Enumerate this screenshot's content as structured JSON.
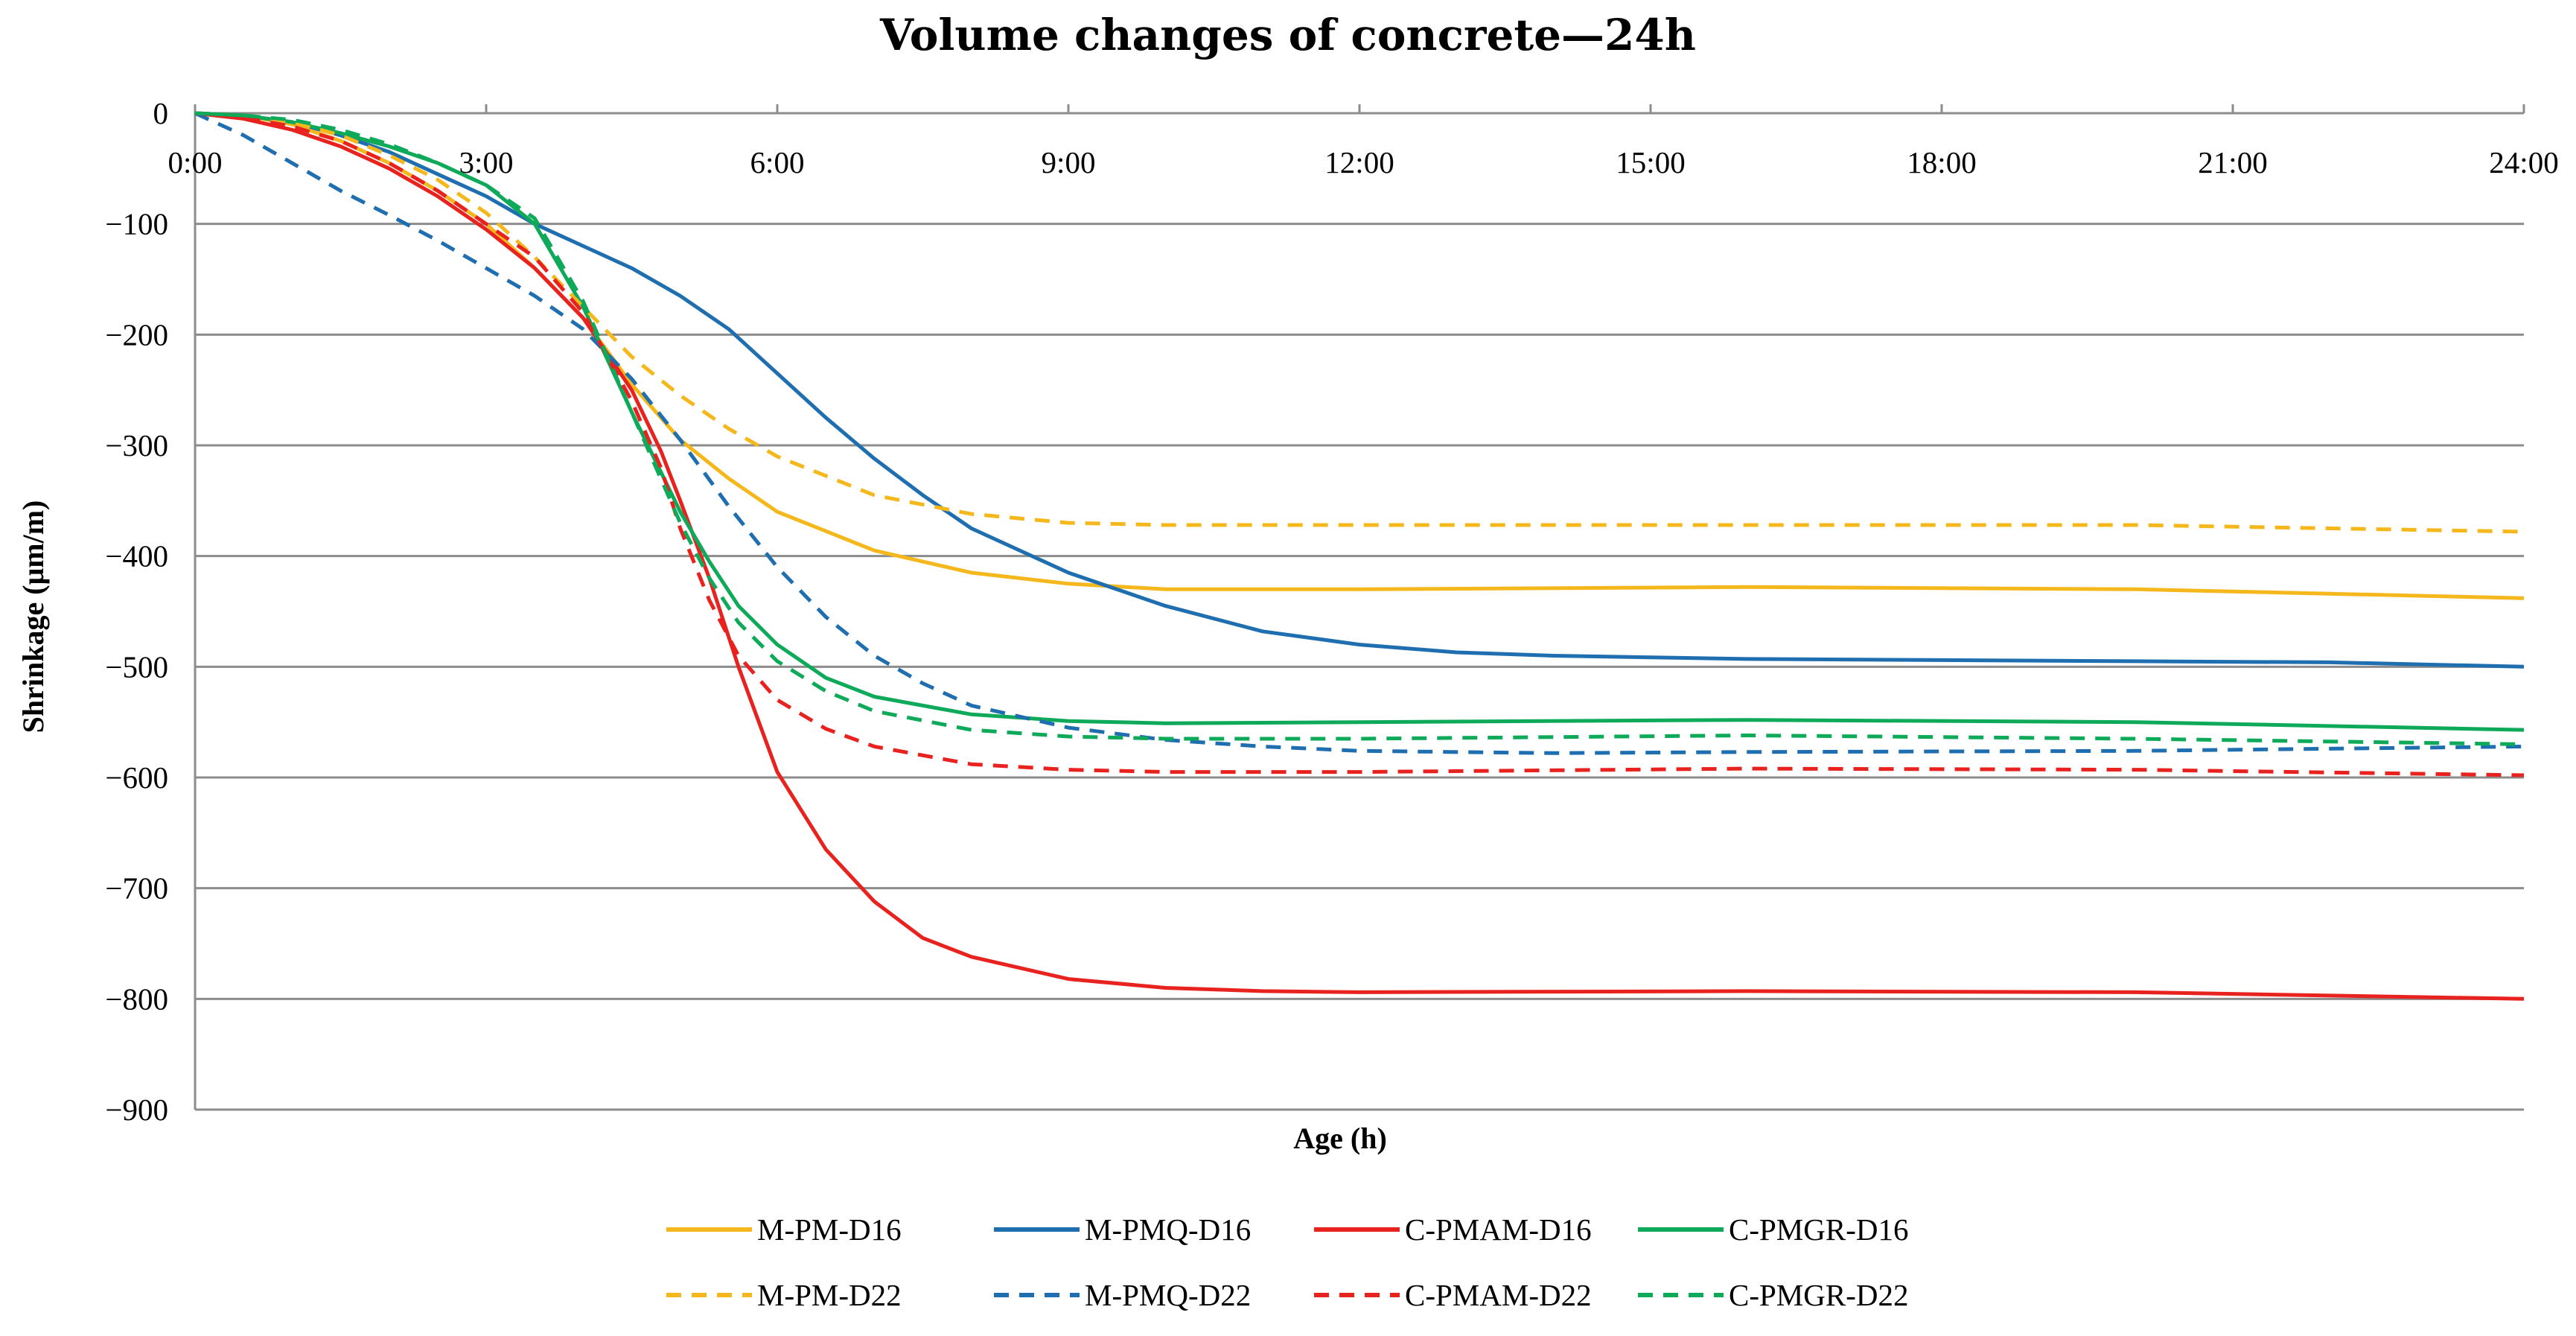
{
  "chart_data": {
    "type": "line",
    "title": "Volume changes of concrete—24h",
    "xlabel": "Age (h)",
    "ylabel": "Shrinkage (μm/m)",
    "xlim": [
      0,
      24
    ],
    "ylim": [
      -900,
      0
    ],
    "x_ticks": [
      0,
      3,
      6,
      9,
      12,
      15,
      18,
      21,
      24
    ],
    "x_tick_labels": [
      "0:00",
      "3:00",
      "6:00",
      "9:00",
      "12:00",
      "15:00",
      "18:00",
      "21:00",
      "24:00"
    ],
    "y_ticks": [
      0,
      -100,
      -200,
      -300,
      -400,
      -500,
      -600,
      -700,
      -800,
      -900
    ],
    "y_tick_labels": [
      "0",
      "−100",
      "−200",
      "−300",
      "−400",
      "−500",
      "−600",
      "−700",
      "−800",
      "−900"
    ],
    "grid": "horizontal",
    "legend_position": "bottom",
    "series": [
      {
        "name": "M-PM-D16",
        "color": "#F5B81C",
        "dash": "solid",
        "x": [
          0,
          0.5,
          1,
          1.5,
          2,
          2.5,
          3,
          3.5,
          4,
          4.5,
          5,
          5.5,
          6,
          7,
          8,
          9,
          10,
          12,
          16,
          20,
          24
        ],
        "y": [
          0,
          -2,
          -10,
          -25,
          -45,
          -70,
          -100,
          -140,
          -185,
          -245,
          -295,
          -330,
          -360,
          -395,
          -415,
          -425,
          -430,
          -430,
          -428,
          -430,
          -438
        ]
      },
      {
        "name": "M-PMQ-D16",
        "color": "#1F6FB0",
        "dash": "solid",
        "x": [
          0,
          0.5,
          1,
          1.5,
          2,
          2.5,
          3,
          3.5,
          4,
          4.5,
          5,
          5.5,
          6,
          6.5,
          7,
          7.5,
          8,
          9,
          10,
          11,
          12,
          13,
          14,
          16,
          18,
          20,
          22,
          24
        ],
        "y": [
          0,
          -2,
          -8,
          -20,
          -35,
          -55,
          -75,
          -100,
          -120,
          -140,
          -165,
          -195,
          -235,
          -275,
          -312,
          -345,
          -375,
          -415,
          -445,
          -468,
          -480,
          -487,
          -490,
          -493,
          -494,
          -495,
          -496,
          -500
        ]
      },
      {
        "name": "C-PMAM-D16",
        "color": "#E8231F",
        "dash": "solid",
        "x": [
          0,
          0.5,
          1,
          1.5,
          2,
          2.5,
          3,
          3.5,
          4,
          4.5,
          4.8,
          5,
          5.3,
          5.6,
          6,
          6.5,
          7,
          7.5,
          8,
          9,
          10,
          11,
          12,
          16,
          20,
          24
        ],
        "y": [
          0,
          -5,
          -15,
          -30,
          -50,
          -75,
          -105,
          -140,
          -185,
          -250,
          -305,
          -350,
          -420,
          -500,
          -595,
          -665,
          -712,
          -745,
          -762,
          -782,
          -790,
          -793,
          -794,
          -793,
          -794,
          -800
        ]
      },
      {
        "name": "C-PMGR-D16",
        "color": "#0EAA5A",
        "dash": "solid",
        "x": [
          0,
          0.5,
          1,
          1.5,
          2,
          2.5,
          3,
          3.5,
          4,
          4.5,
          5,
          5.3,
          5.6,
          6,
          6.5,
          7,
          8,
          9,
          10,
          12,
          16,
          20,
          24
        ],
        "y": [
          0,
          -2,
          -8,
          -18,
          -30,
          -45,
          -65,
          -100,
          -175,
          -270,
          -360,
          -405,
          -445,
          -480,
          -510,
          -527,
          -543,
          -549,
          -551,
          -550,
          -548,
          -550,
          -557
        ]
      },
      {
        "name": "M-PM-D22",
        "color": "#F5B81C",
        "dash": "dashed",
        "x": [
          0,
          0.5,
          1,
          1.5,
          2,
          2.5,
          3,
          3.5,
          4,
          4.5,
          5,
          5.5,
          6,
          7,
          8,
          9,
          10,
          12,
          16,
          20,
          24
        ],
        "y": [
          0,
          -2,
          -8,
          -20,
          -38,
          -60,
          -90,
          -130,
          -175,
          -220,
          -255,
          -285,
          -310,
          -345,
          -362,
          -370,
          -372,
          -372,
          -372,
          -372,
          -378
        ]
      },
      {
        "name": "M-PMQ-D22",
        "color": "#1F6FB0",
        "dash": "dashed",
        "x": [
          0,
          0.5,
          1,
          1.5,
          2,
          2.5,
          3,
          3.5,
          4,
          4.5,
          5,
          5.5,
          6,
          6.5,
          7,
          7.5,
          8,
          9,
          10,
          11,
          12,
          14,
          16,
          20,
          24
        ],
        "y": [
          0,
          -20,
          -45,
          -70,
          -92,
          -115,
          -140,
          -165,
          -195,
          -240,
          -295,
          -355,
          -410,
          -455,
          -490,
          -515,
          -535,
          -555,
          -566,
          -572,
          -576,
          -578,
          -577,
          -576,
          -572
        ]
      },
      {
        "name": "C-PMAM-D22",
        "color": "#E8231F",
        "dash": "dashed",
        "x": [
          0,
          0.5,
          1,
          1.5,
          2,
          2.5,
          3,
          3.5,
          4,
          4.5,
          4.8,
          5,
          5.3,
          5.6,
          6,
          6.5,
          7,
          8,
          9,
          10,
          12,
          16,
          20,
          24
        ],
        "y": [
          0,
          -4,
          -12,
          -25,
          -45,
          -70,
          -100,
          -130,
          -180,
          -260,
          -320,
          -375,
          -440,
          -490,
          -530,
          -556,
          -572,
          -588,
          -593,
          -595,
          -595,
          -592,
          -593,
          -598
        ]
      },
      {
        "name": "C-PMGR-D22",
        "color": "#0EAA5A",
        "dash": "dashed",
        "x": [
          0,
          0.5,
          1,
          1.5,
          2,
          2.5,
          3,
          3.5,
          4,
          4.5,
          5,
          5.3,
          5.6,
          6,
          6.5,
          7,
          8,
          9,
          10,
          12,
          16,
          20,
          24
        ],
        "y": [
          0,
          -2,
          -6,
          -15,
          -28,
          -45,
          -65,
          -95,
          -170,
          -270,
          -370,
          -420,
          -460,
          -495,
          -522,
          -540,
          -557,
          -563,
          -565,
          -565,
          -562,
          -565,
          -570
        ]
      }
    ]
  }
}
